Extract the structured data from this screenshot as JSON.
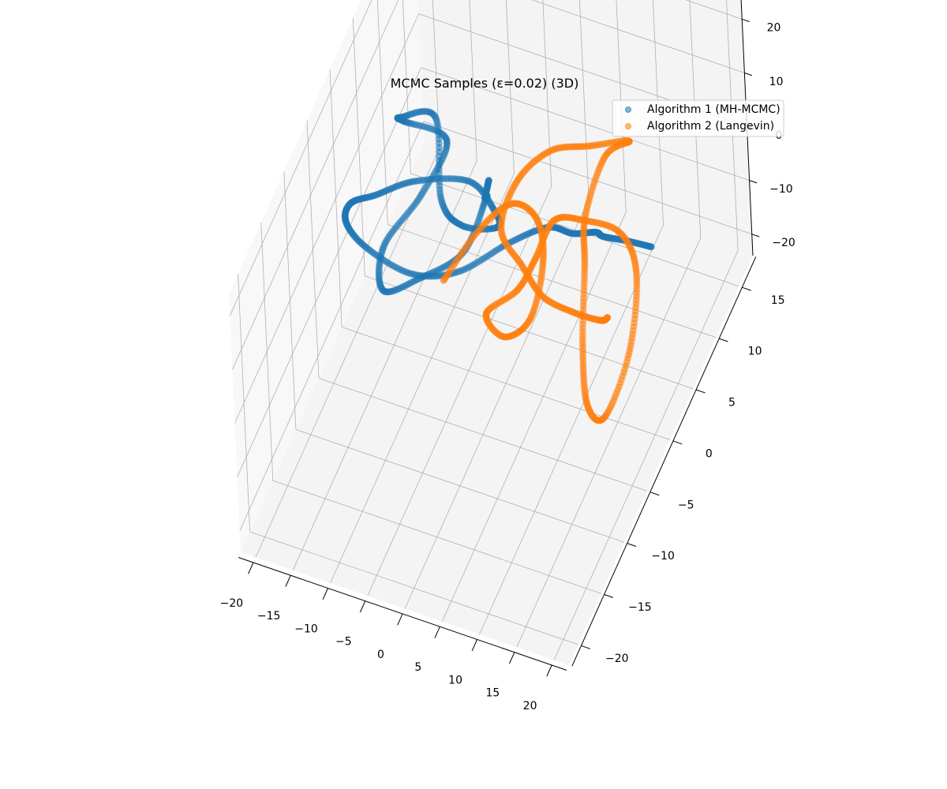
{
  "chart_data": {
    "type": "scatter",
    "projection": "3d",
    "title": "MCMC Samples (ε=0.02) (3D)",
    "xlabel": "",
    "ylabel": "",
    "zlabel": "",
    "xlim": [
      -22,
      22
    ],
    "ylim": [
      -22,
      18
    ],
    "zlim": [
      -24,
      24
    ],
    "x_ticks": [
      "−20",
      "−15",
      "−10",
      "−5",
      "0",
      "5",
      "10",
      "15",
      "20"
    ],
    "y_ticks": [
      "−20",
      "−15",
      "−10",
      "−5",
      "0",
      "5",
      "10",
      "15"
    ],
    "z_ticks": [
      "−20",
      "−10",
      "0",
      "10",
      "20"
    ],
    "grid": true,
    "legend_position": "top-right",
    "series": [
      {
        "name": "Algorithm 1 (MH-MCMC)",
        "color": "#1f77b4",
        "points": [
          [
            1.0,
            -3.0,
            20.0
          ],
          [
            -1.0,
            -1.0,
            12.0
          ],
          [
            -3.0,
            2.0,
            5.0
          ],
          [
            -5.0,
            0.0,
            -2.0
          ],
          [
            -9.0,
            -3.0,
            -3.0
          ],
          [
            -12.0,
            -6.0,
            -1.0
          ],
          [
            -13.0,
            -4.0,
            3.0
          ],
          [
            -11.0,
            1.0,
            4.0
          ],
          [
            -10.0,
            5.0,
            7.0
          ],
          [
            -15.0,
            4.0,
            10.0
          ],
          [
            -14.0,
            2.0,
            15.0
          ],
          [
            -10.0,
            3.0,
            15.0
          ],
          [
            -7.0,
            -1.0,
            9.0
          ],
          [
            -5.0,
            0.0,
            3.0
          ],
          [
            -3.0,
            4.0,
            -4.0
          ],
          [
            -6.0,
            8.0,
            -10.0
          ],
          [
            -12.0,
            12.0,
            -15.0
          ],
          [
            -18.0,
            10.0,
            -14.0
          ],
          [
            -20.0,
            5.0,
            -8.0
          ],
          [
            -20.0,
            0.0,
            0.0
          ],
          [
            -18.0,
            -4.0,
            5.0
          ],
          [
            -14.0,
            -6.0,
            6.0
          ],
          [
            -8.0,
            -6.0,
            4.0
          ],
          [
            -3.0,
            -4.0,
            3.0
          ],
          [
            2.0,
            -1.0,
            5.0
          ],
          [
            6.0,
            1.0,
            6.0
          ],
          [
            8.0,
            3.0,
            2.0
          ],
          [
            9.0,
            6.0,
            -3.0
          ],
          [
            8.0,
            9.0,
            -10.0
          ],
          [
            9.0,
            12.0,
            -16.0
          ],
          [
            11.0,
            14.0,
            -20.0
          ]
        ]
      },
      {
        "name": "Algorithm 2 (Langevin)",
        "color": "#ff7f0e",
        "points": [
          [
            -12.0,
            6.0,
            -22.0
          ],
          [
            -9.0,
            9.0,
            -17.0
          ],
          [
            -5.0,
            10.0,
            -12.0
          ],
          [
            -1.0,
            9.0,
            -11.0
          ],
          [
            1.0,
            7.0,
            -14.0
          ],
          [
            1.0,
            4.0,
            -19.0
          ],
          [
            -2.0,
            3.0,
            -22.0
          ],
          [
            -5.0,
            4.0,
            -21.0
          ],
          [
            -2.0,
            6.0,
            -19.0
          ],
          [
            0.0,
            7.0,
            -14.0
          ],
          [
            2.0,
            8.0,
            -8.0
          ],
          [
            6.0,
            8.0,
            -6.0
          ],
          [
            11.0,
            8.0,
            -6.0
          ],
          [
            15.0,
            5.0,
            -6.0
          ],
          [
            17.0,
            0.0,
            -10.0
          ],
          [
            16.0,
            -4.0,
            -15.0
          ],
          [
            13.0,
            -3.0,
            -16.0
          ],
          [
            10.0,
            1.0,
            -14.0
          ],
          [
            8.0,
            5.0,
            -8.0
          ],
          [
            7.0,
            7.0,
            -3.0
          ],
          [
            8.0,
            10.0,
            3.0
          ],
          [
            10.0,
            12.0,
            3.0
          ],
          [
            6.0,
            10.0,
            4.0
          ],
          [
            2.0,
            8.0,
            5.0
          ],
          [
            0.0,
            4.0,
            6.0
          ],
          [
            1.0,
            -1.0,
            7.0
          ],
          [
            5.0,
            -3.0,
            6.0
          ],
          [
            9.0,
            -5.0,
            6.0
          ],
          [
            13.0,
            -5.0,
            5.0
          ],
          [
            16.0,
            -4.0,
            3.0
          ],
          [
            17.0,
            -4.0,
            4.0
          ]
        ]
      }
    ]
  }
}
